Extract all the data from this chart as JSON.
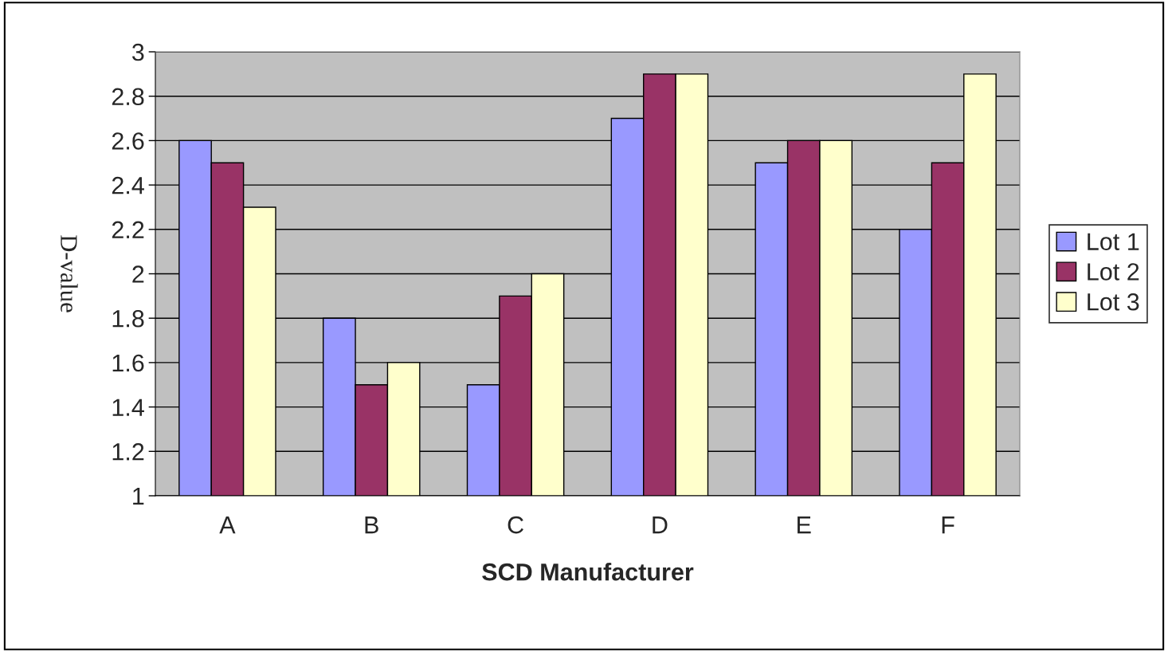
{
  "chart_data": {
    "type": "bar",
    "xlabel": "SCD Manufacturer",
    "ylabel": "D-value",
    "categories": [
      "A",
      "B",
      "C",
      "D",
      "E",
      "F"
    ],
    "series": [
      {
        "name": "Lot 1",
        "color": "#9999ff",
        "values": [
          2.6,
          1.8,
          1.5,
          2.7,
          2.5,
          2.2
        ]
      },
      {
        "name": "Lot 2",
        "color": "#993366",
        "values": [
          2.5,
          1.5,
          1.9,
          2.9,
          2.6,
          2.5
        ]
      },
      {
        "name": "Lot 3",
        "color": "#ffffcc",
        "values": [
          2.3,
          1.6,
          2.0,
          2.9,
          2.6,
          2.9
        ]
      }
    ],
    "ylim": [
      1,
      3
    ],
    "yticks": [
      1,
      1.2,
      1.4,
      1.6,
      1.8,
      2,
      2.2,
      2.4,
      2.6,
      2.8,
      3
    ],
    "grid": "y",
    "legend": "right"
  }
}
